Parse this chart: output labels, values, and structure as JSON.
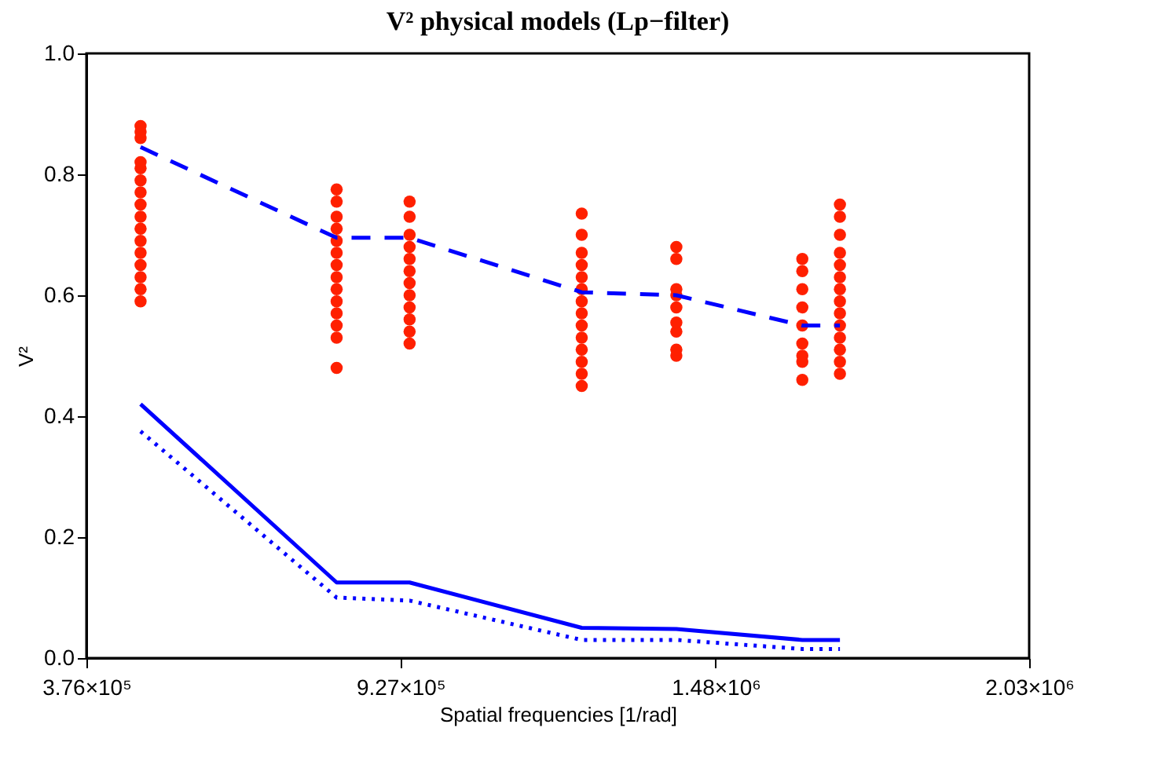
{
  "chart_data": {
    "type": "line",
    "title": "V² physical models (Lp−filter)",
    "xlabel": "Spatial frequencies [1/rad]",
    "ylabel": "V²",
    "xlim": [
      376000,
      2030000
    ],
    "ylim": [
      0,
      1
    ],
    "xticks": [
      {
        "value": 376000,
        "label": "3.76×10⁵"
      },
      {
        "value": 927000,
        "label": "9.27×10⁵"
      },
      {
        "value": 1480000,
        "label": "1.48×10⁶"
      },
      {
        "value": 2030000,
        "label": "2.03×10⁶"
      }
    ],
    "yticks": [
      {
        "value": 0,
        "label": "0.0"
      },
      {
        "value": 0.2,
        "label": "0.2"
      },
      {
        "value": 0.4,
        "label": "0.4"
      },
      {
        "value": 0.6,
        "label": "0.6"
      },
      {
        "value": 0.8,
        "label": "0.8"
      },
      {
        "value": 1,
        "label": "1.0"
      }
    ],
    "grid": false,
    "series": [
      {
        "type": "scatter",
        "marker": "circle",
        "color": "#ff2000",
        "x": [
          471000,
          471000,
          471000,
          471000,
          471000,
          471000,
          471000,
          471000,
          471000,
          471000,
          471000,
          471000,
          471000,
          471000,
          471000,
          471000,
          815000,
          815000,
          815000,
          815000,
          815000,
          815000,
          815000,
          815000,
          815000,
          815000,
          815000,
          815000,
          815000,
          815000,
          943000,
          943000,
          943000,
          943000,
          943000,
          943000,
          943000,
          943000,
          943000,
          943000,
          943000,
          943000,
          1245000,
          1245000,
          1245000,
          1245000,
          1245000,
          1245000,
          1245000,
          1245000,
          1245000,
          1245000,
          1245000,
          1245000,
          1245000,
          1245000,
          1411000,
          1411000,
          1411000,
          1411000,
          1411000,
          1411000,
          1411000,
          1411000,
          1411000,
          1632000,
          1632000,
          1632000,
          1632000,
          1632000,
          1632000,
          1632000,
          1632000,
          1632000,
          1698000,
          1698000,
          1698000,
          1698000,
          1698000,
          1698000,
          1698000,
          1698000,
          1698000,
          1698000,
          1698000,
          1698000,
          1698000,
          1698000
        ],
        "values": [
          0.59,
          0.61,
          0.63,
          0.65,
          0.67,
          0.69,
          0.71,
          0.73,
          0.75,
          0.77,
          0.79,
          0.81,
          0.82,
          0.86,
          0.87,
          0.88,
          0.48,
          0.53,
          0.55,
          0.57,
          0.59,
          0.61,
          0.63,
          0.65,
          0.67,
          0.69,
          0.71,
          0.73,
          0.755,
          0.775,
          0.52,
          0.54,
          0.56,
          0.58,
          0.6,
          0.62,
          0.64,
          0.66,
          0.68,
          0.7,
          0.73,
          0.755,
          0.45,
          0.47,
          0.49,
          0.51,
          0.53,
          0.55,
          0.57,
          0.59,
          0.61,
          0.63,
          0.65,
          0.67,
          0.7,
          0.735,
          0.5,
          0.51,
          0.54,
          0.555,
          0.58,
          0.6,
          0.61,
          0.66,
          0.68,
          0.46,
          0.49,
          0.5,
          0.52,
          0.55,
          0.58,
          0.61,
          0.64,
          0.66,
          0.47,
          0.49,
          0.51,
          0.53,
          0.55,
          0.57,
          0.59,
          0.61,
          0.63,
          0.65,
          0.67,
          0.7,
          0.73,
          0.75
        ]
      },
      {
        "line_style": "dashed",
        "color": "#0000ff",
        "x": [
          471000,
          815000,
          943000,
          1245000,
          1411000,
          1632000,
          1698000
        ],
        "values": [
          0.845,
          0.695,
          0.695,
          0.605,
          0.6,
          0.55,
          0.55
        ]
      },
      {
        "line_style": "solid",
        "color": "#0000ff",
        "x": [
          471000,
          815000,
          943000,
          1245000,
          1411000,
          1632000,
          1698000
        ],
        "values": [
          0.42,
          0.125,
          0.125,
          0.05,
          0.048,
          0.03,
          0.03
        ]
      },
      {
        "line_style": "dotted",
        "color": "#0000ff",
        "x": [
          471000,
          815000,
          943000,
          1245000,
          1411000,
          1632000,
          1698000
        ],
        "values": [
          0.375,
          0.1,
          0.095,
          0.03,
          0.03,
          0.015,
          0.015
        ]
      }
    ]
  }
}
